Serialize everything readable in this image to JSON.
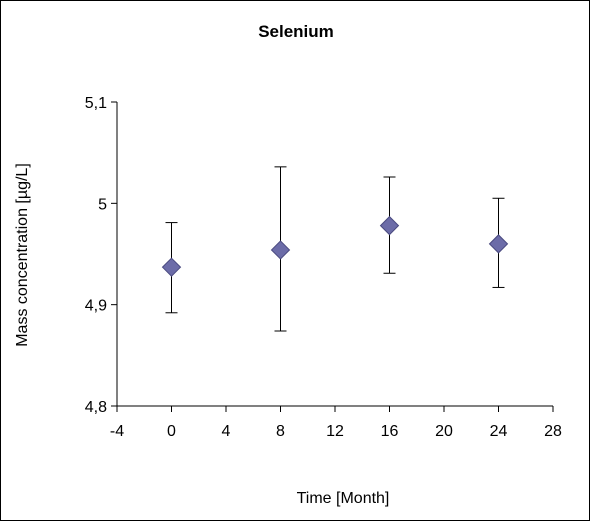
{
  "chart_data": {
    "type": "scatter",
    "title": "Selenium",
    "xlabel": "Time [Month]",
    "ylabel": "Mass concentration [µg/L]",
    "xlim": [
      -4,
      28
    ],
    "ylim": [
      4.8,
      5.1
    ],
    "xticks": [
      "-4",
      "0",
      "4",
      "8",
      "12",
      "16",
      "20",
      "24",
      "28"
    ],
    "yticks": [
      "4,8",
      "4,9",
      "5",
      "5,1"
    ],
    "grid": false,
    "marker": "diamond",
    "colors": {
      "marker": "#6c6ca8",
      "marker_edge": "#4a4a80",
      "errorbar": "#000000",
      "axis": "#000000"
    },
    "points": [
      {
        "x": 0,
        "y": 4.937,
        "err_low": 4.892,
        "err_high": 4.981
      },
      {
        "x": 8,
        "y": 4.954,
        "err_low": 4.874,
        "err_high": 5.036
      },
      {
        "x": 16,
        "y": 4.978,
        "err_low": 4.931,
        "err_high": 5.026
      },
      {
        "x": 24,
        "y": 4.96,
        "err_low": 4.917,
        "err_high": 5.005
      }
    ]
  }
}
